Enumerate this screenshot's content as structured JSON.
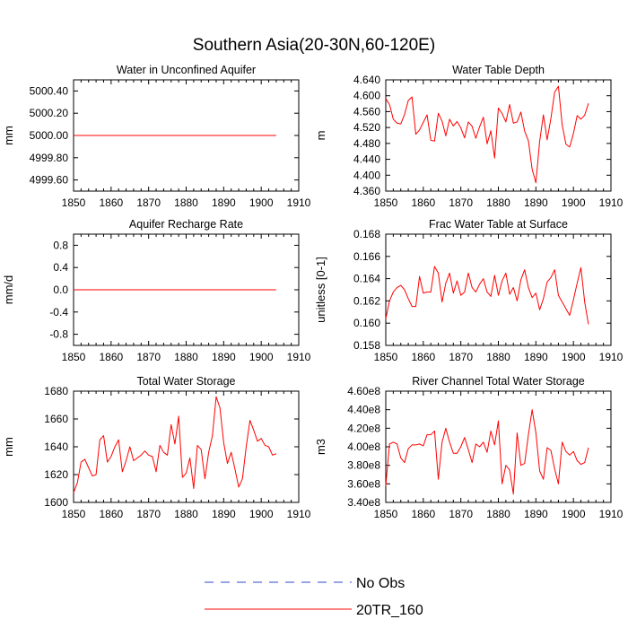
{
  "page": {
    "title": "Southern Asia(20-30N,60-120E)"
  },
  "legend": {
    "items": [
      {
        "label": "No Obs",
        "style": "dashed",
        "color": "#3344cc"
      },
      {
        "label": "20TR_160",
        "style": "solid",
        "color": "#ff0000"
      }
    ]
  },
  "chart_data": [
    {
      "type": "line",
      "title": "Water in Unconfined Aquifer",
      "ylabel": "mm",
      "xlim": [
        1850,
        1910
      ],
      "xticks": [
        1850,
        1860,
        1870,
        1880,
        1890,
        1900,
        1910
      ],
      "ylim": [
        4999.5,
        5000.5
      ],
      "yticks": [
        4999.6,
        4999.8,
        5000.0,
        5000.2,
        5000.4
      ],
      "ytick_labels": [
        "4999.60",
        "4999.80",
        "5000.00",
        "5000.20",
        "5000.40"
      ],
      "series": [
        {
          "name": "20TR_160",
          "x_start": 1850,
          "x_step": 1,
          "color": "#ff0000",
          "values": [
            5000,
            5000,
            5000,
            5000,
            5000,
            5000,
            5000,
            5000,
            5000,
            5000,
            5000,
            5000,
            5000,
            5000,
            5000,
            5000,
            5000,
            5000,
            5000,
            5000,
            5000,
            5000,
            5000,
            5000,
            5000,
            5000,
            5000,
            5000,
            5000,
            5000,
            5000,
            5000,
            5000,
            5000,
            5000,
            5000,
            5000,
            5000,
            5000,
            5000,
            5000,
            5000,
            5000,
            5000,
            5000,
            5000,
            5000,
            5000,
            5000,
            5000,
            5000,
            5000,
            5000,
            5000,
            5000
          ]
        }
      ]
    },
    {
      "type": "line",
      "title": "Water Table Depth",
      "ylabel": "m",
      "xlim": [
        1850,
        1910
      ],
      "xticks": [
        1850,
        1860,
        1870,
        1880,
        1890,
        1900,
        1910
      ],
      "ylim": [
        4.36,
        4.64
      ],
      "yticks": [
        4.36,
        4.4,
        4.44,
        4.48,
        4.52,
        4.56,
        4.6,
        4.64
      ],
      "ytick_labels": [
        "4.360",
        "4.400",
        "4.440",
        "4.480",
        "4.520",
        "4.560",
        "4.600",
        "4.640"
      ],
      "series": [
        {
          "name": "20TR_160",
          "x_start": 1850,
          "x_step": 1,
          "color": "#ff0000",
          "values": [
            4.593,
            4.578,
            4.541,
            4.531,
            4.529,
            4.553,
            4.588,
            4.597,
            4.503,
            4.514,
            4.533,
            4.552,
            4.488,
            4.486,
            4.556,
            4.536,
            4.499,
            4.541,
            4.524,
            4.535,
            4.519,
            4.494,
            4.534,
            4.523,
            4.493,
            4.522,
            4.546,
            4.479,
            4.512,
            4.443,
            4.569,
            4.555,
            4.534,
            4.578,
            4.531,
            4.534,
            4.559,
            4.511,
            4.487,
            4.415,
            4.381,
            4.485,
            4.552,
            4.489,
            4.543,
            4.609,
            4.624,
            4.527,
            4.478,
            4.471,
            4.505,
            4.55,
            4.541,
            4.551,
            4.581
          ]
        }
      ]
    },
    {
      "type": "line",
      "title": "Aquifer Recharge Rate",
      "ylabel": "mm/d",
      "xlim": [
        1850,
        1910
      ],
      "xticks": [
        1850,
        1860,
        1870,
        1880,
        1890,
        1900,
        1910
      ],
      "ylim": [
        -1.0,
        1.0
      ],
      "yticks": [
        -0.8,
        -0.4,
        0.0,
        0.4,
        0.8
      ],
      "ytick_labels": [
        "-0.8",
        "-0.4",
        "0.0",
        "0.4",
        "0.8"
      ],
      "series": [
        {
          "name": "20TR_160",
          "x_start": 1850,
          "x_step": 1,
          "color": "#ff0000",
          "values": [
            0,
            0,
            0,
            0,
            0,
            0,
            0,
            0,
            0,
            0,
            0,
            0,
            0,
            0,
            0,
            0,
            0,
            0,
            0,
            0,
            0,
            0,
            0,
            0,
            0,
            0,
            0,
            0,
            0,
            0,
            0,
            0,
            0,
            0,
            0,
            0,
            0,
            0,
            0,
            0,
            0,
            0,
            0,
            0,
            0,
            0,
            0,
            0,
            0,
            0,
            0,
            0,
            0,
            0,
            0
          ]
        }
      ]
    },
    {
      "type": "line",
      "title": "Frac Water Table at Surface",
      "ylabel": "unitless [0-1]",
      "xlim": [
        1850,
        1910
      ],
      "xticks": [
        1850,
        1860,
        1870,
        1880,
        1890,
        1900,
        1910
      ],
      "ylim": [
        0.158,
        0.168
      ],
      "yticks": [
        0.158,
        0.16,
        0.162,
        0.164,
        0.166,
        0.168
      ],
      "ytick_labels": [
        "0.158",
        "0.160",
        "0.162",
        "0.164",
        "0.166",
        "0.168"
      ],
      "series": [
        {
          "name": "20TR_160",
          "x_start": 1850,
          "x_step": 1,
          "color": "#ff0000",
          "values": [
            0.1604,
            0.162,
            0.1628,
            0.1632,
            0.1634,
            0.163,
            0.1622,
            0.1615,
            0.1615,
            0.1642,
            0.1627,
            0.1628,
            0.1628,
            0.1651,
            0.1645,
            0.1619,
            0.1636,
            0.1645,
            0.1627,
            0.1638,
            0.1625,
            0.1628,
            0.1645,
            0.1632,
            0.1628,
            0.1635,
            0.164,
            0.1628,
            0.1624,
            0.1643,
            0.1625,
            0.1638,
            0.1645,
            0.1626,
            0.1632,
            0.162,
            0.1639,
            0.1648,
            0.1632,
            0.1623,
            0.1627,
            0.1612,
            0.1622,
            0.1637,
            0.1641,
            0.1648,
            0.1625,
            0.1619,
            0.1613,
            0.1607,
            0.1621,
            0.1636,
            0.165,
            0.1619,
            0.1599
          ]
        }
      ]
    },
    {
      "type": "line",
      "title": "Total Water Storage",
      "ylabel": "mm",
      "xlim": [
        1850,
        1910
      ],
      "xticks": [
        1850,
        1860,
        1870,
        1880,
        1890,
        1900,
        1910
      ],
      "ylim": [
        1600,
        1680
      ],
      "yticks": [
        1600,
        1620,
        1640,
        1660,
        1680
      ],
      "ytick_labels": [
        "1600",
        "1620",
        "1640",
        "1660",
        "1680"
      ],
      "series": [
        {
          "name": "20TR_160",
          "x_start": 1850,
          "x_step": 1,
          "color": "#ff0000",
          "values": [
            1607,
            1614,
            1629,
            1631,
            1625,
            1619,
            1620,
            1645,
            1648,
            1629,
            1633,
            1640,
            1645,
            1622,
            1630,
            1640,
            1630,
            1632,
            1634,
            1637,
            1634,
            1633,
            1622,
            1641,
            1636,
            1634,
            1656,
            1642,
            1662,
            1618,
            1621,
            1632,
            1610,
            1641,
            1638,
            1617,
            1636,
            1648,
            1676,
            1668,
            1643,
            1628,
            1636,
            1624,
            1611,
            1617,
            1640,
            1659,
            1652,
            1644,
            1646,
            1641,
            1640,
            1634,
            1635
          ]
        }
      ]
    },
    {
      "type": "line",
      "title": "River Channel Total Water Storage",
      "ylabel": "m3",
      "xlim": [
        1850,
        1910
      ],
      "xticks": [
        1850,
        1860,
        1870,
        1880,
        1890,
        1900,
        1910
      ],
      "ylim": [
        340000000.0,
        460000000.0
      ],
      "yticks": [
        340000000.0,
        360000000.0,
        380000000.0,
        400000000.0,
        420000000.0,
        440000000.0,
        460000000.0
      ],
      "ytick_labels": [
        "3.40e8",
        "3.60e8",
        "3.80e8",
        "4.00e8",
        "4.20e8",
        "4.40e8",
        "4.60e8"
      ],
      "series": [
        {
          "name": "20TR_160",
          "x_start": 1850,
          "x_step": 1,
          "color": "#ff0000",
          "values": [
            358000000.0,
            403000000.0,
            405000000.0,
            403000000.0,
            388000000.0,
            383000000.0,
            398000000.0,
            402000000.0,
            402000000.0,
            403000000.0,
            401000000.0,
            413000000.0,
            413000000.0,
            417000000.0,
            365000000.0,
            405000000.0,
            420000000.0,
            405000000.0,
            393000000.0,
            393000000.0,
            400000000.0,
            410000000.0,
            397000000.0,
            383000000.0,
            403000000.0,
            400000000.0,
            405000000.0,
            394000000.0,
            417000000.0,
            402000000.0,
            428000000.0,
            360000000.0,
            380000000.0,
            375000000.0,
            349000000.0,
            415000000.0,
            380000000.0,
            382000000.0,
            413000000.0,
            440000000.0,
            415000000.0,
            374000000.0,
            365000000.0,
            399000000.0,
            396000000.0,
            376000000.0,
            360000000.0,
            405000000.0,
            395000000.0,
            391000000.0,
            395000000.0,
            385000000.0,
            381000000.0,
            383000000.0,
            399000000.0
          ]
        }
      ]
    }
  ]
}
